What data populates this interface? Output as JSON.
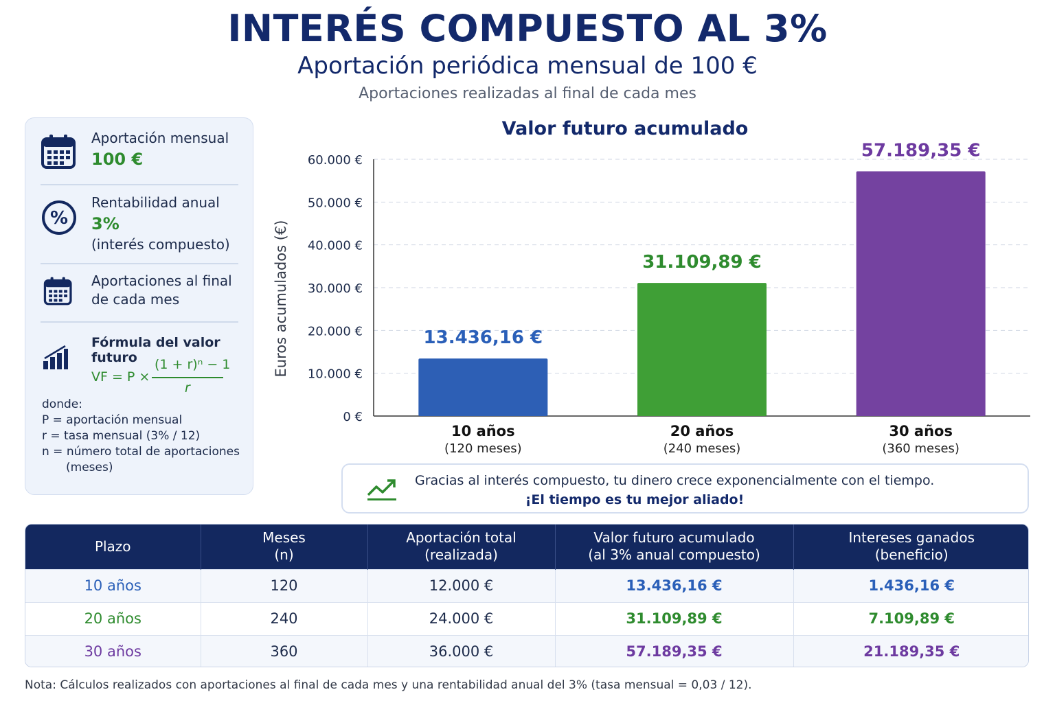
{
  "header": {
    "title": "INTERÉS COMPUESTO AL 3%",
    "subtitle": "Aportación periódica mensual de 100 €",
    "note": "Aportaciones realizadas al final de cada mes"
  },
  "panel": {
    "monthly_label": "Aportación mensual",
    "monthly_value": "100 €",
    "rate_label": "Rentabilidad anual",
    "rate_value": "3%",
    "rate_note": "(interés compuesto)",
    "timing_line1": "Aportaciones al final",
    "timing_line2": "de cada mes",
    "formula_title": "Fórmula del valor futuro",
    "formula_lhs": "VF = P ×",
    "formula_num": "(1 + r)ⁿ − 1",
    "formula_den": "r",
    "where_label": "donde:",
    "where_p": "P = aportación mensual",
    "where_r": "r = tasa mensual (3% / 12)",
    "where_n": "n = número total de aportaciones",
    "where_n2": "(meses)"
  },
  "chart_data": {
    "type": "bar",
    "title": "Valor futuro acumulado",
    "ylabel": "Euros acumulados (€)",
    "xlabel": "",
    "ylim": [
      0,
      60000
    ],
    "yticks": [
      0,
      10000,
      20000,
      30000,
      40000,
      50000,
      60000
    ],
    "ytick_labels": [
      "0 €",
      "10.000 €",
      "20.000 €",
      "30.000 €",
      "40.000 €",
      "50.000 €",
      "60.000 €"
    ],
    "grid": true,
    "categories": [
      "10 años",
      "20 años",
      "30 años"
    ],
    "category_sublabels": [
      "(120 meses)",
      "(240 meses)",
      "(360 meses)"
    ],
    "values": [
      13436.16,
      31109.89,
      57189.35
    ],
    "value_labels": [
      "13.436,16 €",
      "31.109,89 €",
      "57.189,35 €"
    ],
    "colors": [
      "#2d5fb5",
      "#3f9f36",
      "#7442a0"
    ],
    "label_colors": [
      "#2a5fb8",
      "#2e8b2e",
      "#6d3aa0"
    ]
  },
  "callout": {
    "line1": "Gracias al interés compuesto, tu dinero crece exponencialmente con el tiempo.",
    "line2": "¡El tiempo es tu mejor aliado!"
  },
  "table": {
    "headers": [
      {
        "l1": "Plazo",
        "l2": ""
      },
      {
        "l1": "Meses",
        "l2": "(n)"
      },
      {
        "l1": "Aportación total",
        "l2": "(realizada)"
      },
      {
        "l1": "Valor futuro acumulado",
        "l2": "(al 3% anual compuesto)"
      },
      {
        "l1": "Intereses ganados",
        "l2": "(beneficio)"
      }
    ],
    "rows": [
      {
        "plazo": "10 años",
        "meses": "120",
        "aportacion": "12.000 €",
        "valor": "13.436,16 €",
        "intereses": "1.436,16 €"
      },
      {
        "plazo": "20 años",
        "meses": "240",
        "aportacion": "24.000 €",
        "valor": "31.109,89 €",
        "intereses": "7.109,89 €"
      },
      {
        "plazo": "30 años",
        "meses": "360",
        "aportacion": "36.000 €",
        "valor": "57.189,35 €",
        "intereses": "21.189,35 €"
      }
    ]
  },
  "footnote": "Nota: Cálculos realizados con aportaciones al final de cada mes y una rentabilidad anual del 3% (tasa mensual = 0,03 / 12).",
  "icons": {
    "monthly": "calendar-icon",
    "rate": "percent-icon",
    "timing": "calendar-icon",
    "formula": "bar-chart-icon",
    "callout": "trend-up-icon"
  }
}
